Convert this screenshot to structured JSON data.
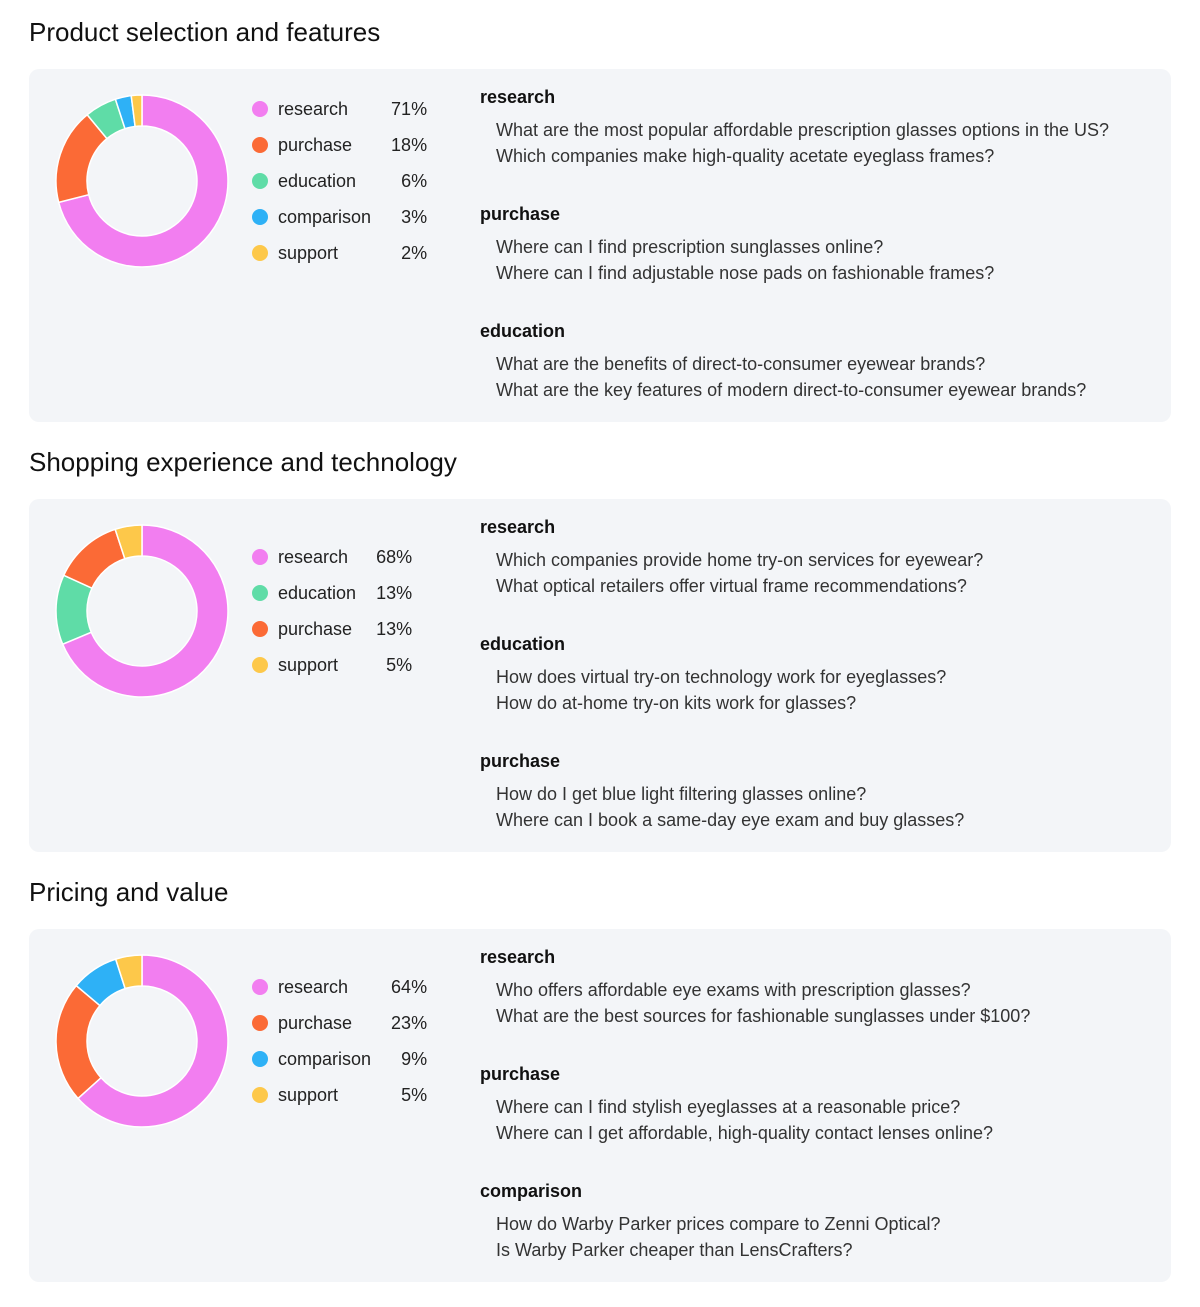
{
  "chart_data": [
    {
      "type": "pie",
      "title": "Product selection and features",
      "categories": [
        "research",
        "purchase",
        "education",
        "comparison",
        "support"
      ],
      "values": [
        71,
        18,
        6,
        3,
        2
      ],
      "value_labels": [
        "71%",
        "18%",
        "6%",
        "3%",
        "2%"
      ],
      "colors": [
        "#f27ef0",
        "#fb6a36",
        "#5fdca7",
        "#2eb1f6",
        "#fdc84a"
      ],
      "queries": [
        {
          "intent": "research",
          "examples": [
            "What are the most popular affordable prescription glasses options in the US?",
            "Which companies make high-quality acetate eyeglass frames?"
          ]
        },
        {
          "intent": "purchase",
          "examples": [
            "Where can I find prescription sunglasses online?",
            "Where can I find adjustable nose pads on fashionable frames?"
          ]
        },
        {
          "intent": "education",
          "examples": [
            "What are the benefits of direct-to-consumer eyewear brands?",
            "What are the key features of modern direct-to-consumer eyewear brands?"
          ]
        }
      ]
    },
    {
      "type": "pie",
      "title": "Shopping experience and technology",
      "categories": [
        "research",
        "education",
        "purchase",
        "support"
      ],
      "values": [
        68,
        13,
        13,
        5
      ],
      "value_labels": [
        "68%",
        "13%",
        "13%",
        "5%"
      ],
      "colors": [
        "#f27ef0",
        "#5fdca7",
        "#fb6a36",
        "#fdc84a"
      ],
      "queries": [
        {
          "intent": "research",
          "examples": [
            "Which companies provide home try-on services for eyewear?",
            "What optical retailers offer virtual frame recommendations?"
          ]
        },
        {
          "intent": "education",
          "examples": [
            "How does virtual try-on technology work for eyeglasses?",
            "How do at-home try-on kits work for glasses?"
          ]
        },
        {
          "intent": "purchase",
          "examples": [
            "How do I get blue light filtering glasses online?",
            "Where can I book a same-day eye exam and buy glasses?"
          ]
        }
      ]
    },
    {
      "type": "pie",
      "title": "Pricing and value",
      "categories": [
        "research",
        "purchase",
        "comparison",
        "support"
      ],
      "values": [
        64,
        23,
        9,
        5
      ],
      "value_labels": [
        "64%",
        "23%",
        "9%",
        "5%"
      ],
      "colors": [
        "#f27ef0",
        "#fb6a36",
        "#2eb1f6",
        "#fdc84a"
      ],
      "queries": [
        {
          "intent": "research",
          "examples": [
            "Who offers affordable eye exams with prescription glasses?",
            "What are the best sources for fashionable sunglasses under $100?"
          ]
        },
        {
          "intent": "purchase",
          "examples": [
            "Where can I find stylish eyeglasses at a reasonable price?",
            "Where can I get affordable, high-quality contact lenses online?"
          ]
        },
        {
          "intent": "comparison",
          "examples": [
            "How do Warby Parker prices compare to Zenni Optical?",
            "Is Warby Parker cheaper than LensCrafters?"
          ]
        }
      ]
    }
  ]
}
